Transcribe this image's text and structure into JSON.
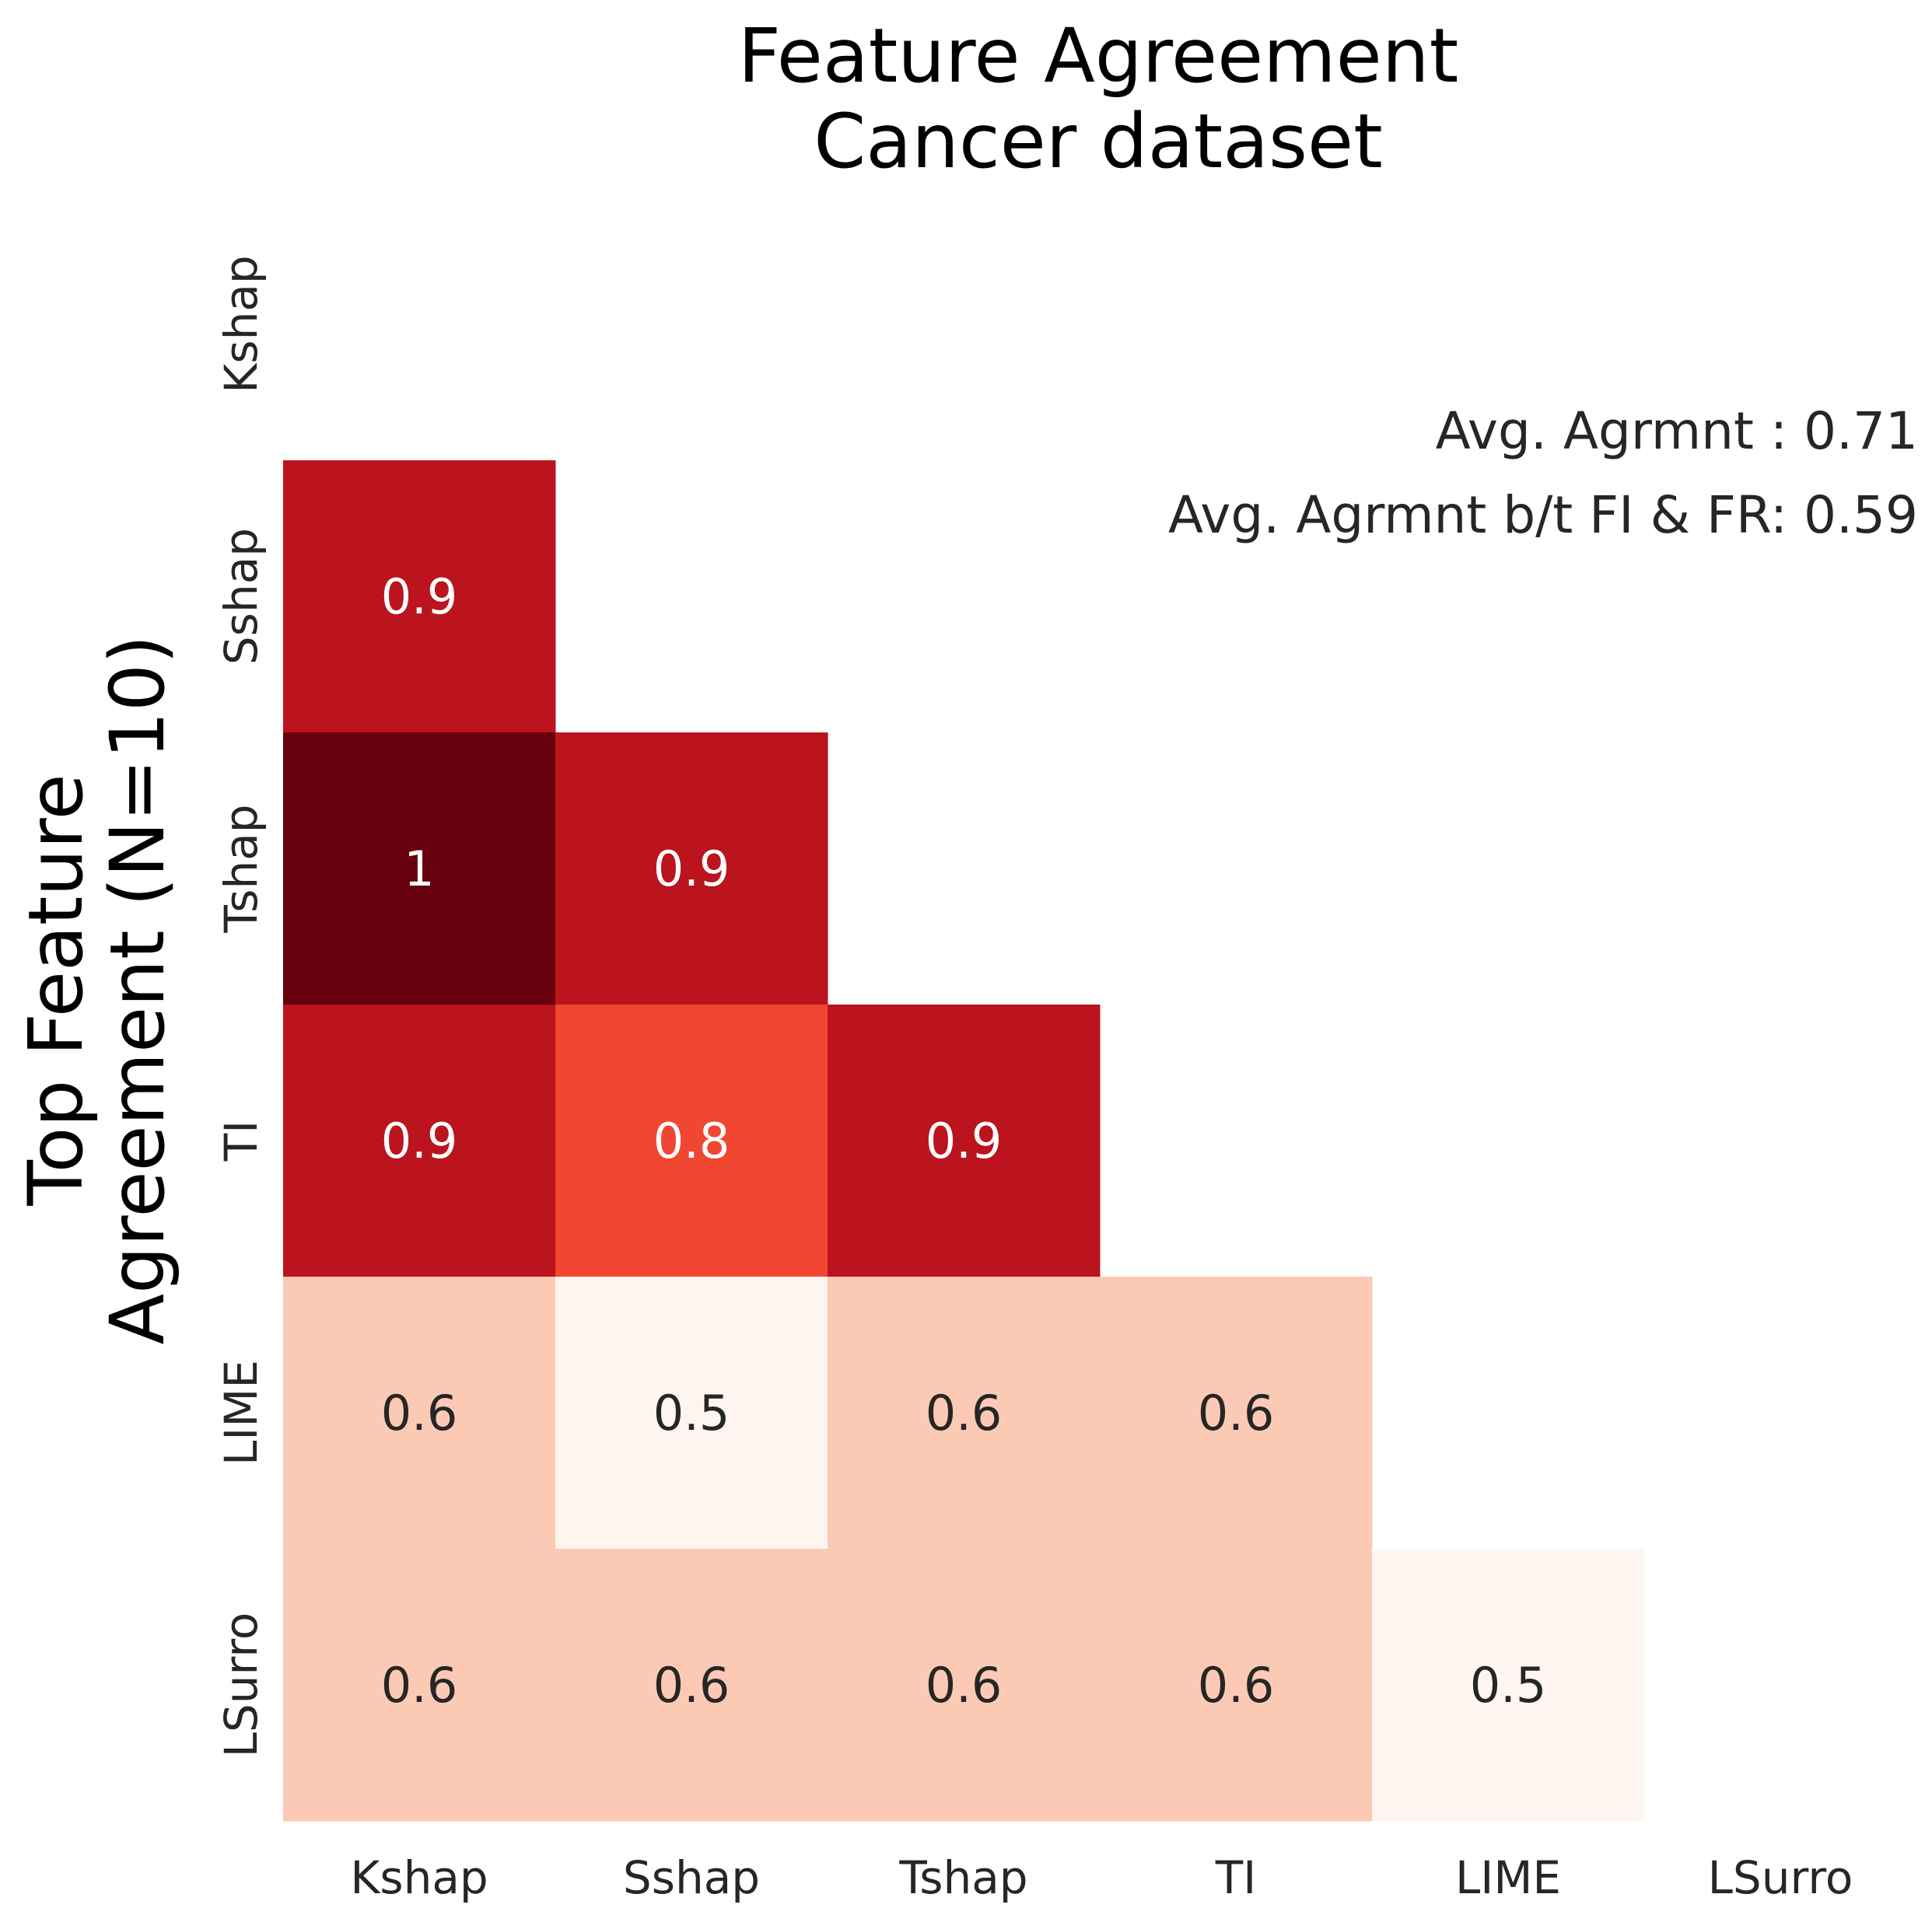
{
  "chart_data": {
    "type": "heatmap",
    "title_lines": [
      "Feature Agreement",
      "Cancer dataset"
    ],
    "ylabel_lines": [
      "Top Feature",
      "Agreement (N=10)"
    ],
    "xlabel": "",
    "x_categories": [
      "Kshap",
      "Sshap",
      "Tshap",
      "TI",
      "LIME",
      "LSurro"
    ],
    "y_categories": [
      "Kshap",
      "Sshap",
      "Tshap",
      "TI",
      "LIME",
      "LSurro"
    ],
    "mask": "upper triangle incl. diagonal",
    "colormap": "Reds",
    "value_range": [
      0.5,
      1.0
    ],
    "cells": [
      {
        "row": "Sshap",
        "col": "Kshap",
        "value": 0.9,
        "label": "0.9"
      },
      {
        "row": "Tshap",
        "col": "Kshap",
        "value": 1.0,
        "label": "1"
      },
      {
        "row": "Tshap",
        "col": "Sshap",
        "value": 0.9,
        "label": "0.9"
      },
      {
        "row": "TI",
        "col": "Kshap",
        "value": 0.9,
        "label": "0.9"
      },
      {
        "row": "TI",
        "col": "Sshap",
        "value": 0.8,
        "label": "0.8"
      },
      {
        "row": "TI",
        "col": "Tshap",
        "value": 0.9,
        "label": "0.9"
      },
      {
        "row": "LIME",
        "col": "Kshap",
        "value": 0.6,
        "label": "0.6"
      },
      {
        "row": "LIME",
        "col": "Sshap",
        "value": 0.5,
        "label": "0.5"
      },
      {
        "row": "LIME",
        "col": "Tshap",
        "value": 0.6,
        "label": "0.6"
      },
      {
        "row": "LIME",
        "col": "TI",
        "value": 0.6,
        "label": "0.6"
      },
      {
        "row": "LSurro",
        "col": "Kshap",
        "value": 0.6,
        "label": "0.6"
      },
      {
        "row": "LSurro",
        "col": "Sshap",
        "value": 0.6,
        "label": "0.6"
      },
      {
        "row": "LSurro",
        "col": "Tshap",
        "value": 0.6,
        "label": "0.6"
      },
      {
        "row": "LSurro",
        "col": "TI",
        "value": 0.6,
        "label": "0.6"
      },
      {
        "row": "LSurro",
        "col": "LIME",
        "value": 0.5,
        "label": "0.5"
      }
    ],
    "annotations": [
      "Avg. Agrmnt : 0.71",
      "Avg. Agrmnt b/t FI & FR: 0.59"
    ],
    "colors": {
      "c0_5": "#fff5f0",
      "c0_6": "#fcc9b4",
      "c0_8": "#f14632",
      "c0_9": "#bb141e",
      "c1_0": "#67000d",
      "text_dark": "#262626",
      "text_light": "#ffffff"
    }
  }
}
